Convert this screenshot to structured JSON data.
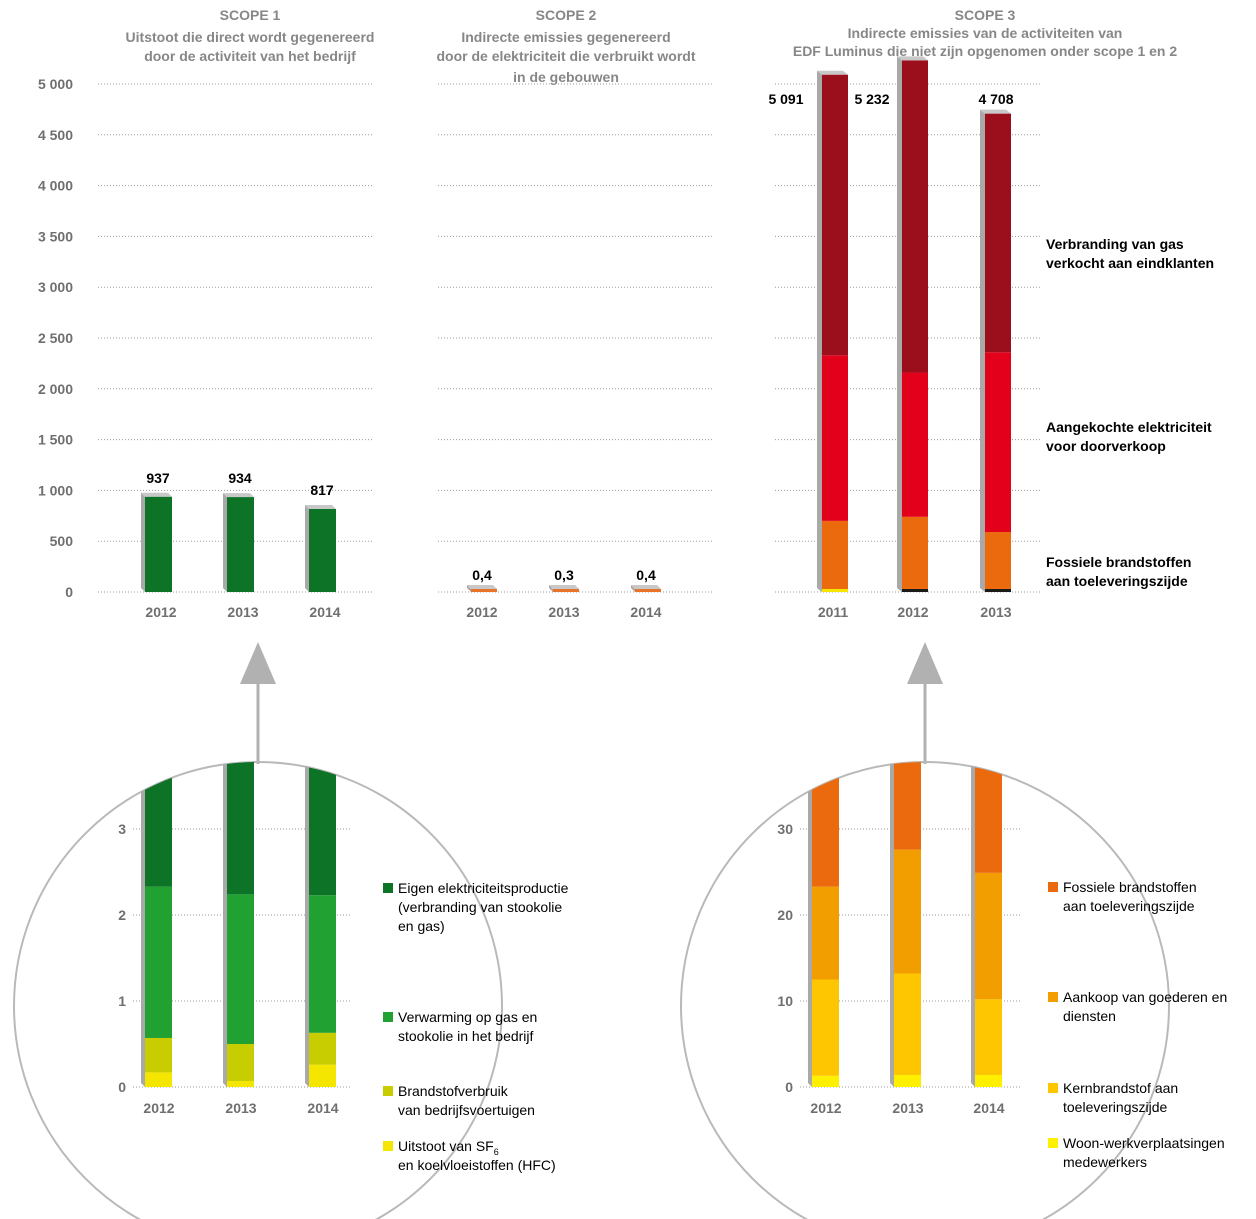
{
  "colors": {
    "grid": "#9a9a9a",
    "side": "#a9a9a9",
    "top": "#c8c8c8",
    "circle": "#b9b9b9",
    "arrow": "#b1b1b1"
  },
  "scope1": {
    "title": [
      "SCOPE 1",
      "Uitstoot die direct wordt gegenereerd",
      "door de activiteit van het bedrijf"
    ]
  },
  "scope2": {
    "title": [
      "SCOPE 2",
      "Indirecte emissies gegenereerd",
      "door de elektriciteit die verbruikt wordt",
      "in de gebouwen"
    ]
  },
  "scope3": {
    "title": [
      "SCOPE 3",
      "Indirecte emissies van de activiteiten van",
      "EDF Luminus die niet zijn opgenomen onder scope 1 en 2"
    ]
  },
  "chart_data": [
    {
      "id": "scope1",
      "type": "bar",
      "y_ticks": [
        "5 000",
        "4 500",
        "4 000",
        "3 500",
        "3 000",
        "2 500",
        "2 000",
        "1 500",
        "1 000",
        "500",
        "0"
      ],
      "ylim": [
        0,
        5000
      ],
      "categories": [
        "2012",
        "2013",
        "2014"
      ],
      "values": [
        937,
        934,
        817
      ],
      "value_labels": [
        "937",
        "934",
        "817"
      ],
      "color": "#0d7427"
    },
    {
      "id": "scope2",
      "type": "bar",
      "ylim": [
        0,
        5000
      ],
      "categories": [
        "2012",
        "2013",
        "2014"
      ],
      "values": [
        0.4,
        0.3,
        0.4
      ],
      "value_labels": [
        "0,4",
        "0,3",
        "0,4"
      ],
      "color": "#e8742a"
    },
    {
      "id": "scope3",
      "type": "bar",
      "stacked": true,
      "ylim": [
        0,
        5000
      ],
      "categories": [
        "2011",
        "2012",
        "2013"
      ],
      "totals": [
        5091,
        5232,
        4708
      ],
      "total_labels": [
        "5 091",
        "5 232",
        "4 708"
      ],
      "series": [
        {
          "name": "Fossiele brandstoffen aan toeleveringszijde",
          "color": "#ec6a0e",
          "values": [
            700,
            740,
            590
          ]
        },
        {
          "name": "Aangekochte elektriciteit voor doorverkoop",
          "color": "#e3001b",
          "values": [
            1630,
            1420,
            1770
          ]
        },
        {
          "name": "Verbranding van gas verkocht aan eindklanten",
          "color": "#9b0f1d",
          "values": [
            2761,
            3072,
            2348
          ]
        }
      ],
      "side_labels": [
        [
          "Verbranding van gas",
          "verkocht aan eindklanten"
        ],
        [
          "Aangekochte elektriciteit",
          "voor doorverkoop"
        ],
        [
          "Fossiele brandstoffen",
          "aan toeleveringszijde"
        ]
      ]
    },
    {
      "id": "scope1_detail",
      "type": "bar",
      "stacked": true,
      "y_ticks": [
        "3",
        "2",
        "1",
        "0"
      ],
      "ylim": [
        0,
        4
      ],
      "categories": [
        "2012",
        "2013",
        "2014"
      ],
      "series": [
        {
          "name": "Uitstoot van SF6 en koelvloeistoffen (HFC)",
          "color": "#f5e600",
          "values": [
            0.17,
            0.07,
            0.26
          ]
        },
        {
          "name": "Brandstofverbruik van bedrijfsvoertuigen",
          "color": "#c7cd00",
          "values": [
            0.4,
            0.43,
            0.37
          ]
        },
        {
          "name": "Verwarming op gas en stookolie in het bedrijf",
          "color": "#22a133",
          "values": [
            1.76,
            1.74,
            1.6
          ]
        },
        {
          "name": "Eigen elektriciteitsproductie (verbranding van stookolie en gas)",
          "color": "#0d7427",
          "values": [
            1.67,
            1.86,
            1.77
          ]
        }
      ],
      "legend": [
        {
          "lines": [
            "Eigen elektriciteitsproductie",
            "(verbranding van stookolie",
            "en gas)"
          ],
          "color": "#0d7427"
        },
        {
          "lines": [
            "Verwarming op gas en",
            "stookolie in het bedrijf"
          ],
          "color": "#22a133"
        },
        {
          "lines": [
            "Brandstofverbruik",
            "van bedrijfsvoertuigen"
          ],
          "color": "#c7cd00"
        },
        {
          "lines": [
            "Uitstoot van SF",
            "en koelvloeistoffen (HFC)"
          ],
          "sub": "6",
          "color": "#f5e600"
        }
      ]
    },
    {
      "id": "scope3_detail",
      "type": "bar",
      "stacked": true,
      "y_ticks": [
        "30",
        "20",
        "10",
        "0"
      ],
      "ylim": [
        0,
        40
      ],
      "categories": [
        "2012",
        "2013",
        "2014"
      ],
      "series": [
        {
          "name": "Woon-werkverplaatsingen medewerkers",
          "color": "#fff000",
          "values": [
            1.3,
            1.4,
            1.4
          ]
        },
        {
          "name": "Kernbrandstof aan toeleveringszijde",
          "color": "#fdc600",
          "values": [
            11.2,
            11.8,
            8.8
          ]
        },
        {
          "name": "Aankoop van goederen en diensten",
          "color": "#f39e00",
          "values": [
            10.8,
            14.4,
            14.7
          ]
        },
        {
          "name": "Fossiele brandstoffen aan toeleveringszijde",
          "color": "#ec6a0e",
          "values": [
            16.7,
            12.4,
            15.1
          ]
        }
      ],
      "legend": [
        {
          "lines": [
            "Fossiele brandstoffen",
            "aan toeleveringszijde"
          ],
          "color": "#ec6a0e"
        },
        {
          "lines": [
            "Aankoop van goederen en",
            "diensten"
          ],
          "color": "#f39e00"
        },
        {
          "lines": [
            "Kernbrandstof aan",
            "toeleveringszijde"
          ],
          "color": "#fdc600"
        },
        {
          "lines": [
            "Woon-werkverplaatsingen",
            "medewerkers"
          ],
          "color": "#fff000"
        }
      ]
    }
  ]
}
